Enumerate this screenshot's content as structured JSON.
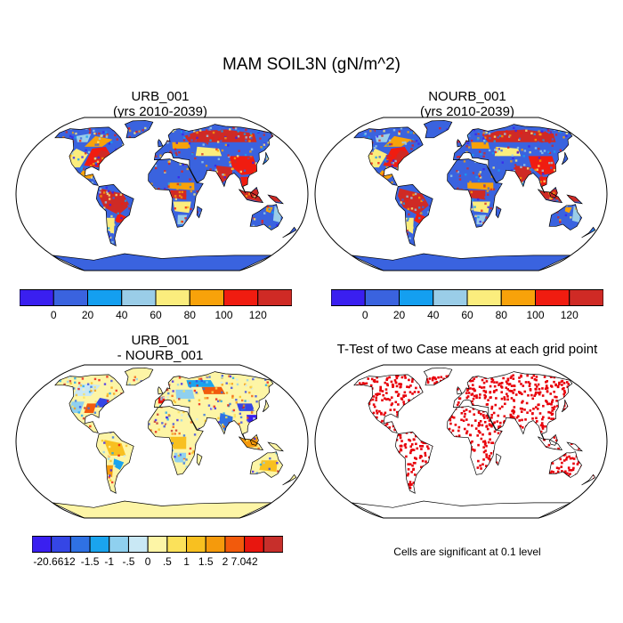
{
  "title": "MAM SOIL3N (gN/m^2)",
  "panels": [
    {
      "id": "urb",
      "title_line1": "URB_001",
      "title_line2": "(yrs 2010-2039)"
    },
    {
      "id": "nourb",
      "title_line1": "NOURB_001",
      "title_line2": "(yrs 2010-2039)"
    },
    {
      "id": "diff",
      "title_line1": "URB_001",
      "title_line2": "- NOURB_001"
    },
    {
      "id": "ttest",
      "title_line1": "T-Test of two Case means at each grid point",
      "title_line2": ""
    }
  ],
  "colorbar_main": {
    "colors": [
      "#3a1ff0",
      "#3a63df",
      "#149ff0",
      "#9acde8",
      "#fbed7d",
      "#f8a20a",
      "#f01c10",
      "#cf2a25"
    ],
    "tick_labels": [
      "0",
      "20",
      "40",
      "60",
      "80",
      "100",
      "120"
    ]
  },
  "colorbar_diff": {
    "colors": [
      "#3a1ff0",
      "#3546e5",
      "#2f71e3",
      "#1aa4ee",
      "#8fd0ef",
      "#c9e8f5",
      "#fdf5a6",
      "#fbe15a",
      "#f8c020",
      "#f59a0c",
      "#f25a0c",
      "#e8160f",
      "#c72f2b"
    ],
    "tick_labels": [
      "-20.661",
      "-2",
      "-1.5",
      "-1",
      "-.5",
      "0",
      ".5",
      "1",
      "1.5",
      "2",
      "7.042"
    ]
  },
  "significance_note": "Cells are significant at 0.1 level",
  "colors": {
    "land_default": "#3a63df",
    "antarctica_diff": "#fdf5a6",
    "significant": "#e8000a"
  }
}
